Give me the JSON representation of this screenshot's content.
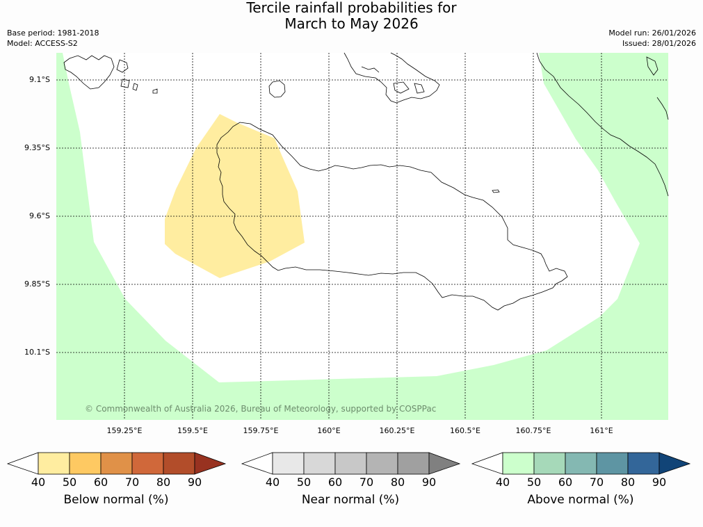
{
  "title": {
    "line1": "Tercile rainfall probabilities for",
    "line2": "March to May 2026"
  },
  "meta": {
    "base_period": "Base period: 1981-2018",
    "model": "Model: ACCESS-S2",
    "model_run": "Model run: 26/01/2026",
    "issued": "Issued: 28/01/2026"
  },
  "map": {
    "lat_labels": [
      "9.1°S",
      "9.35°S",
      "9.6°S",
      "9.85°S",
      "10.1°S"
    ],
    "lon_labels": [
      "159.25°E",
      "159.5°E",
      "159.75°E",
      "160°E",
      "160.25°E",
      "160.5°E",
      "160.75°E",
      "161°E"
    ],
    "copyright": "© Commonwealth of Australia 2026, Bureau of Meteorology, supported by COSPPac",
    "colors": {
      "below_50": "#ffeda0",
      "above_50": "#ccffcc",
      "background": "#ffffff"
    }
  },
  "colorbars": [
    {
      "title": "Below normal (%)",
      "ticks": [
        "40",
        "50",
        "60",
        "70",
        "80",
        "90"
      ],
      "colors": [
        "#ffffff",
        "#ffeda0",
        "#fec962",
        "#e09148",
        "#d0683a",
        "#b24d2a",
        "#983220"
      ]
    },
    {
      "title": "Near normal (%)",
      "ticks": [
        "40",
        "50",
        "60",
        "70",
        "80",
        "90"
      ],
      "colors": [
        "#ffffff",
        "#e8e8e8",
        "#d8d8d8",
        "#c8c8c8",
        "#b4b4b4",
        "#a0a0a0",
        "#808080"
      ]
    },
    {
      "title": "Above normal (%)",
      "ticks": [
        "40",
        "50",
        "60",
        "70",
        "80",
        "90"
      ],
      "colors": [
        "#ffffff",
        "#ccffcc",
        "#a6d9b9",
        "#84b8b2",
        "#5e95a3",
        "#336699",
        "#114477"
      ]
    }
  ]
}
